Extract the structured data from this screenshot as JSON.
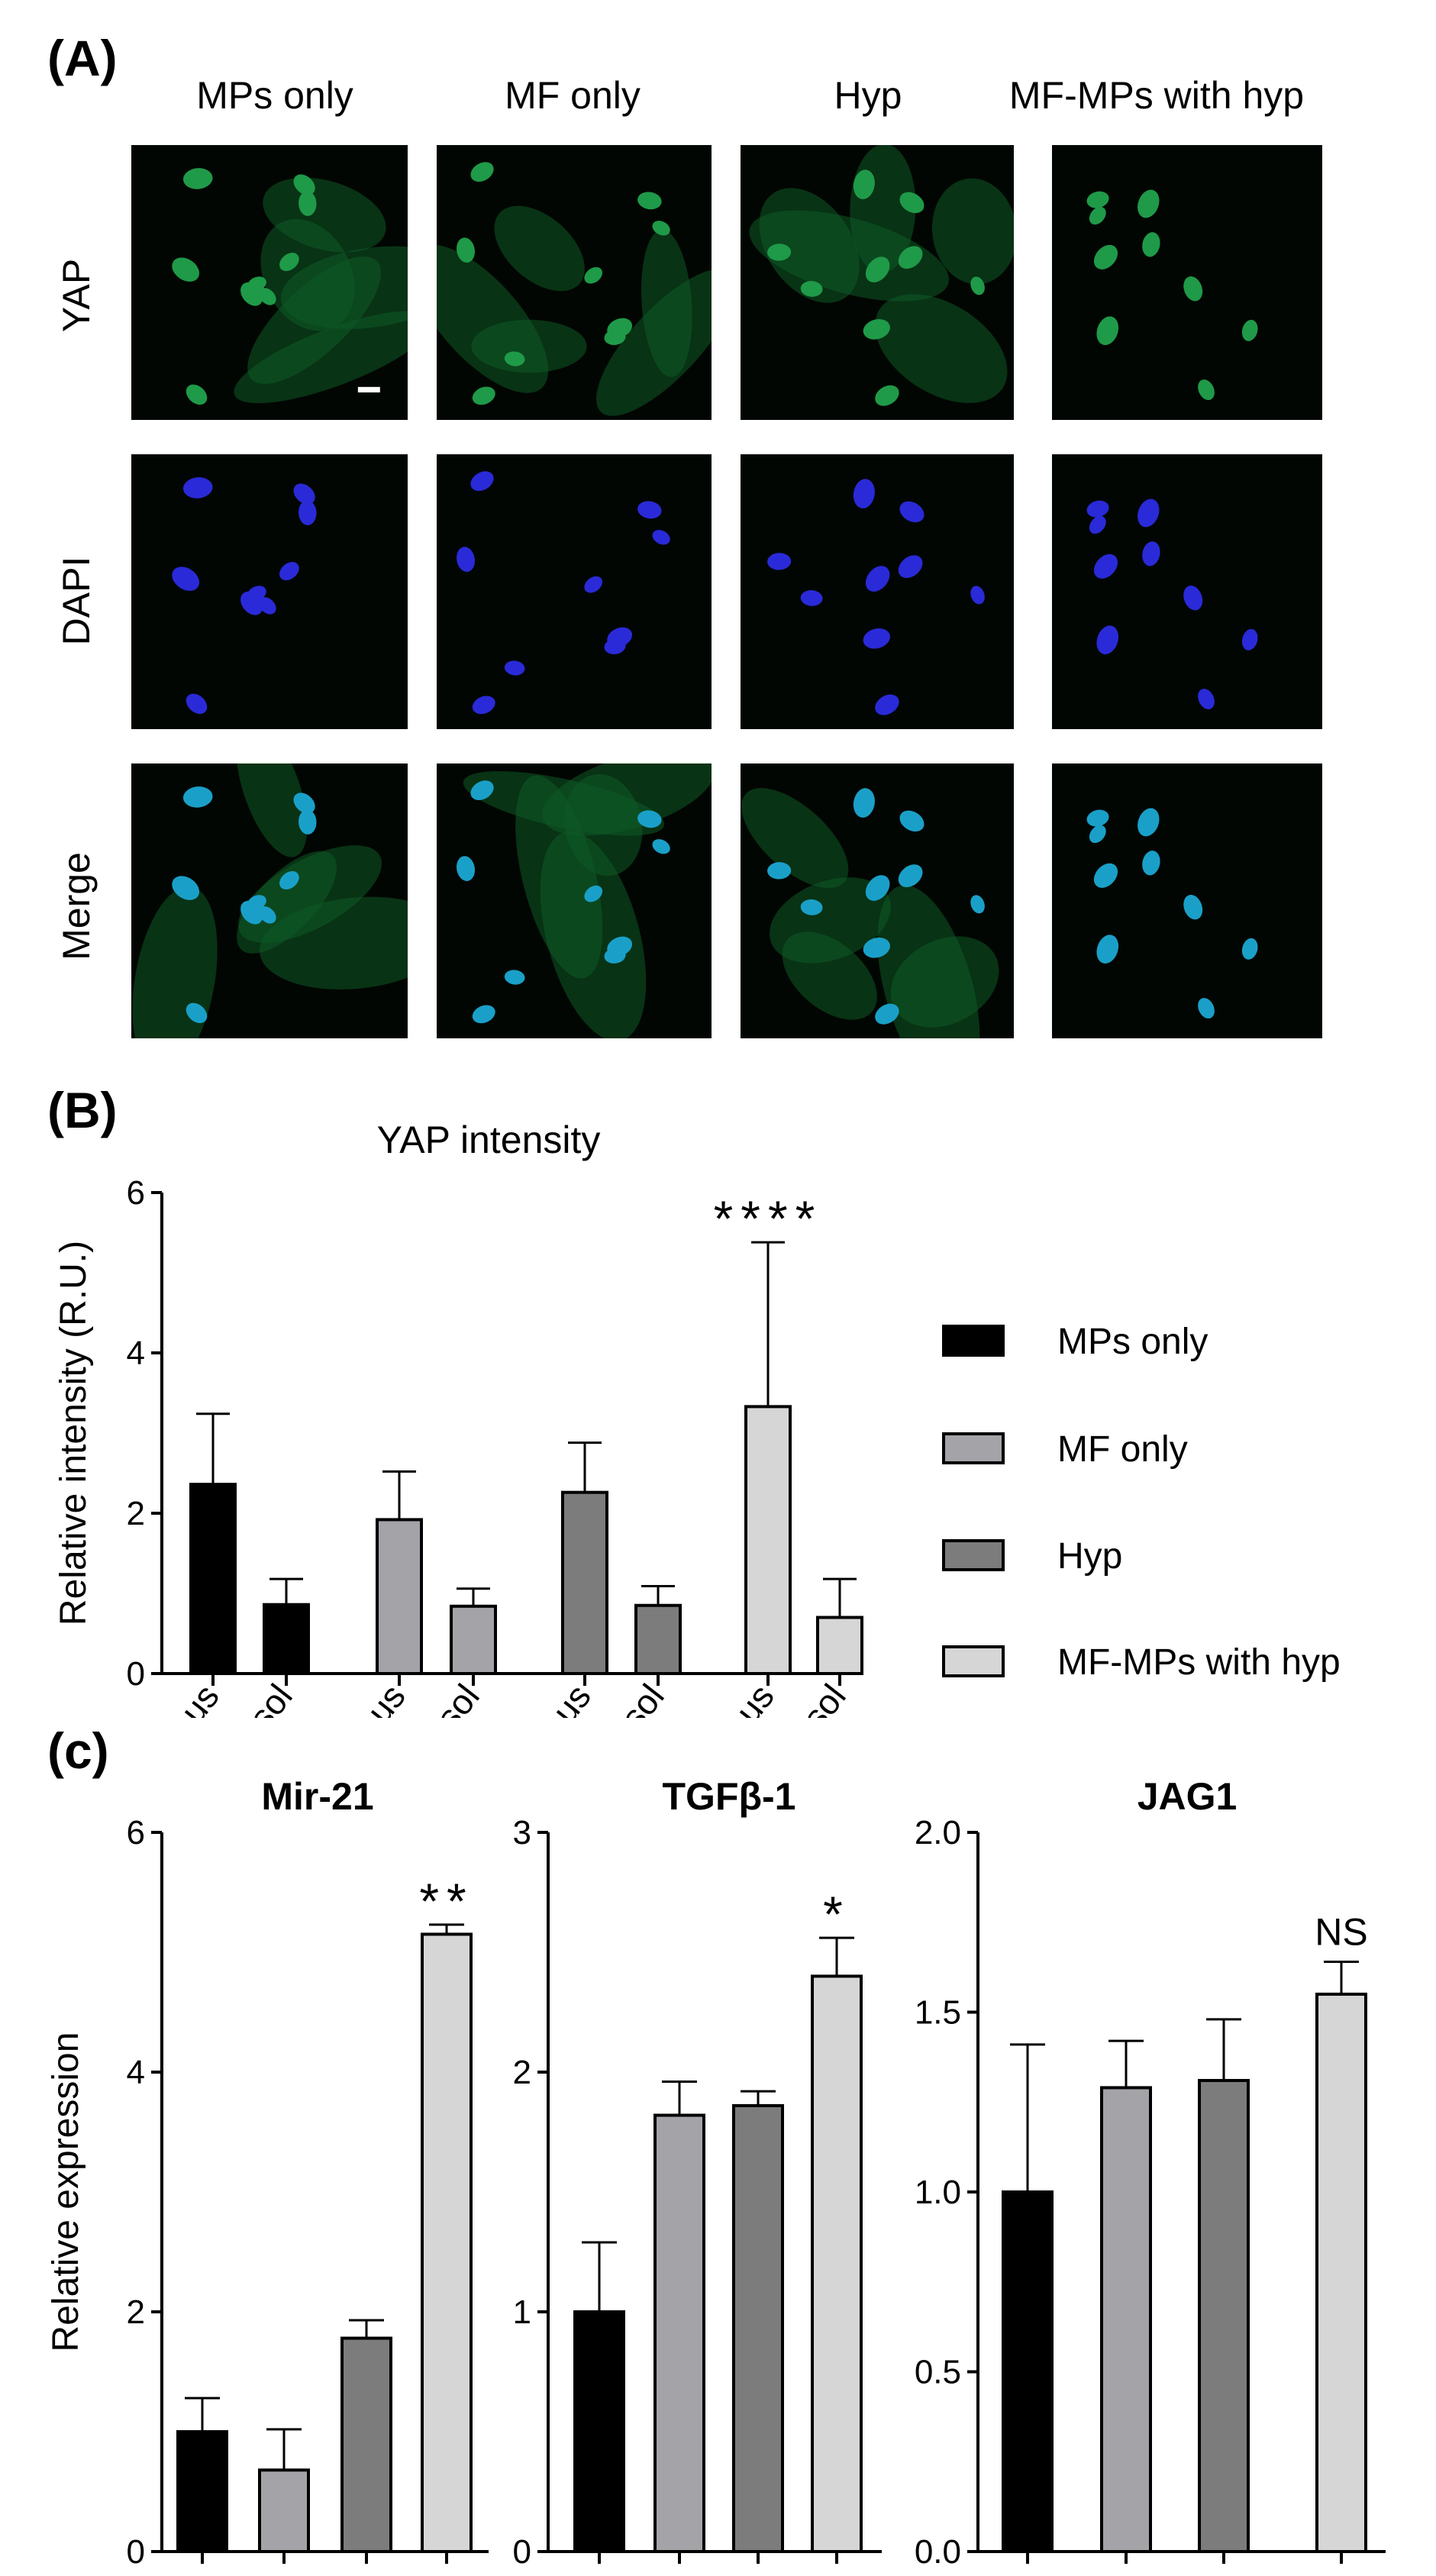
{
  "figure": {
    "panel_a_label": "(A)",
    "panel_b_label": "(B)",
    "panel_c_label": "(c)",
    "columns": [
      "MPs only",
      "MF only",
      "Hyp",
      "MF-MPs with hyp"
    ],
    "rows": [
      "YAP",
      "DAPI",
      "Merge"
    ]
  },
  "colors": {
    "MPs only": "#000000",
    "MF only": "#a3a3a8",
    "Hyp": "#7c7c7c",
    "MF-MPs with hyp": "#d6d6d6",
    "yap_green": "#1f9a48",
    "dapi_blue": "#2a2ad8",
    "merge_cyan": "#1aa0c8"
  },
  "chart_data": [
    {
      "type": "bar",
      "title": "YAP intensity",
      "ylabel": "Relative intensity (R.U.)",
      "ylim": [
        0,
        6
      ],
      "yticks": [
        0,
        2,
        4,
        6
      ],
      "categories": [
        "nucleus",
        "cytosol",
        "nucleus",
        "cytosol",
        "nucleus",
        "cytosol",
        "nucleus",
        "cytosol"
      ],
      "groups": [
        "MPs only",
        "MPs only",
        "MF only",
        "MF only",
        "Hyp",
        "Hyp",
        "MF-MPs with hyp",
        "MF-MPs with hyp"
      ],
      "values": [
        2.36,
        0.86,
        1.92,
        0.84,
        2.26,
        0.85,
        3.33,
        0.7
      ],
      "errors": [
        0.88,
        0.32,
        0.6,
        0.22,
        0.62,
        0.24,
        2.05,
        0.48
      ],
      "annotations": [
        {
          "index": 6,
          "text": "****"
        }
      ],
      "legend": {
        "placement": "right",
        "entries": [
          "MPs only",
          "MF only",
          "Hyp",
          "MF-MPs with hyp"
        ]
      }
    },
    {
      "type": "bar",
      "title": "Mir-21",
      "ylabel": "Relative expression",
      "ylim": [
        0,
        6
      ],
      "yticks": [
        0,
        2,
        4,
        6
      ],
      "groups": [
        "MPs only",
        "MF only",
        "Hyp",
        "MF-MPs with hyp"
      ],
      "values": [
        1.0,
        0.68,
        1.78,
        5.15
      ],
      "errors": [
        0.28,
        0.34,
        0.15,
        0.08
      ],
      "annotations": [
        {
          "index": 3,
          "text": "**"
        }
      ]
    },
    {
      "type": "bar",
      "title": "TGFβ-1",
      "ylim": [
        0,
        3
      ],
      "yticks": [
        0,
        1,
        2,
        3
      ],
      "groups": [
        "MPs only",
        "MF only",
        "Hyp",
        "MF-MPs with hyp"
      ],
      "values": [
        1.0,
        1.82,
        1.86,
        2.4
      ],
      "errors": [
        0.29,
        0.14,
        0.06,
        0.16
      ],
      "annotations": [
        {
          "index": 3,
          "text": "*"
        }
      ]
    },
    {
      "type": "bar",
      "title": "JAG1",
      "ylim": [
        0,
        2
      ],
      "yticks": [
        "0.0",
        "0.5",
        "1.0",
        "1.5",
        "2.0"
      ],
      "groups": [
        "MPs only",
        "MF only",
        "Hyp",
        "MF-MPs with hyp"
      ],
      "values": [
        1.0,
        1.29,
        1.31,
        1.55
      ],
      "errors": [
        0.41,
        0.13,
        0.17,
        0.09
      ],
      "annotations": [
        {
          "index": 3,
          "text": "NS"
        }
      ]
    }
  ]
}
